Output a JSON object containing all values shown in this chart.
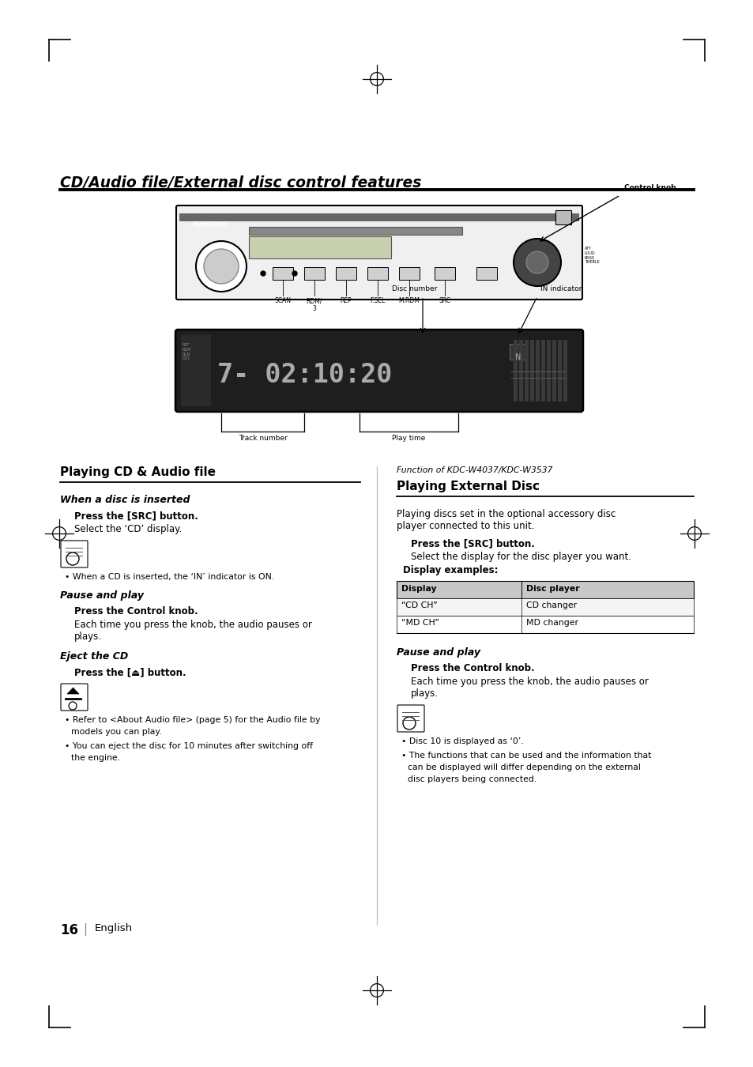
{
  "bg_color": "#ffffff",
  "title": "CD/Audio file/External disc control features",
  "page_number": "16",
  "page_number_label": "English",
  "section_left_title": "Playing CD & Audio file",
  "section_right_title": "Playing External Disc",
  "section_right_subtitle": "Function of KDC-W4037/KDC-W3537",
  "table_headers": [
    "Display",
    "Disc player"
  ],
  "table_rows": [
    [
      "“CD CH”",
      "CD changer"
    ],
    [
      "“MD CH”",
      "MD changer"
    ]
  ]
}
